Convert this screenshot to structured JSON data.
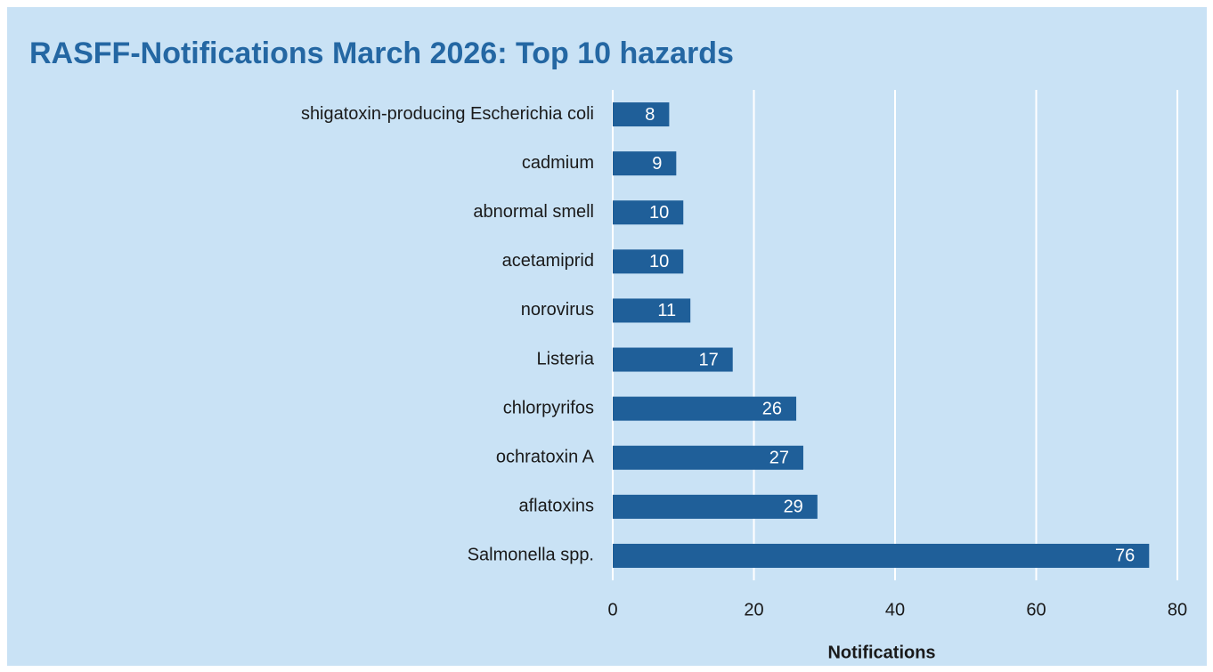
{
  "chart_data": {
    "type": "bar",
    "orientation": "horizontal",
    "title": "RASFF-Notifications March 2026: Top 10 hazards",
    "x_label": "Notifications",
    "categories": [
      "shigatoxin-producing Escherichia coli",
      "cadmium",
      "abnormal smell",
      "acetamiprid",
      "norovirus",
      "Listeria",
      "chlorpyrifos",
      "ochratoxin A",
      "aflatoxins",
      "Salmonella spp."
    ],
    "values": [
      8,
      9,
      10,
      10,
      11,
      17,
      26,
      27,
      29,
      76
    ],
    "color": "#1f5f99",
    "xlim": [
      0,
      80
    ],
    "xticks": [
      0,
      20,
      40,
      60,
      80
    ],
    "grid": true
  }
}
